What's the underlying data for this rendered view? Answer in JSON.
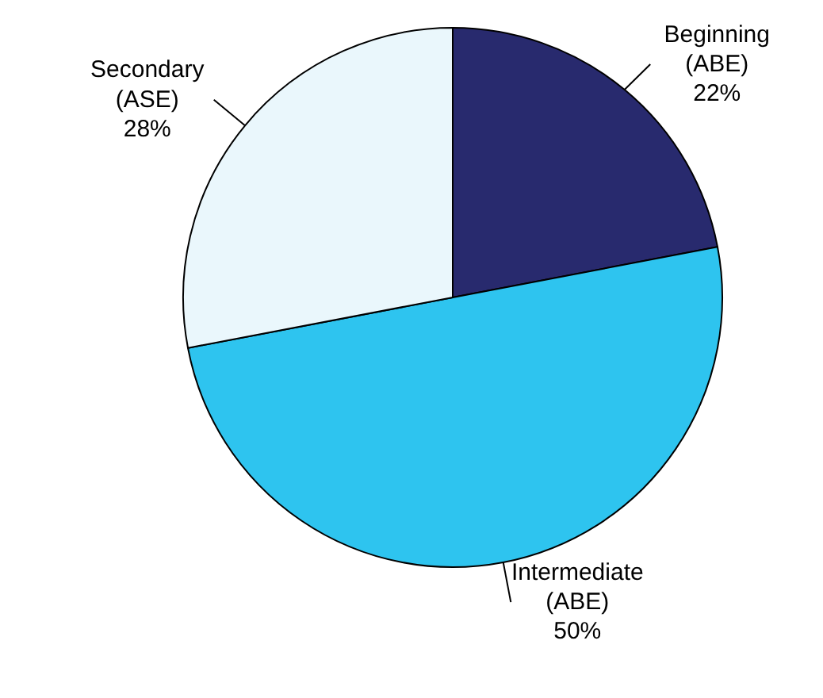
{
  "chart_data": {
    "type": "pie",
    "categories": [
      "Beginning\n(ABE)",
      "Intermediate\n(ABE)",
      "Secondary\n(ASE)"
    ],
    "values": [
      22,
      50,
      28
    ],
    "value_labels": [
      "22%",
      "50%",
      "28%"
    ],
    "colors": [
      "#282a6e",
      "#2ec4ef",
      "#eaf7fc"
    ]
  }
}
